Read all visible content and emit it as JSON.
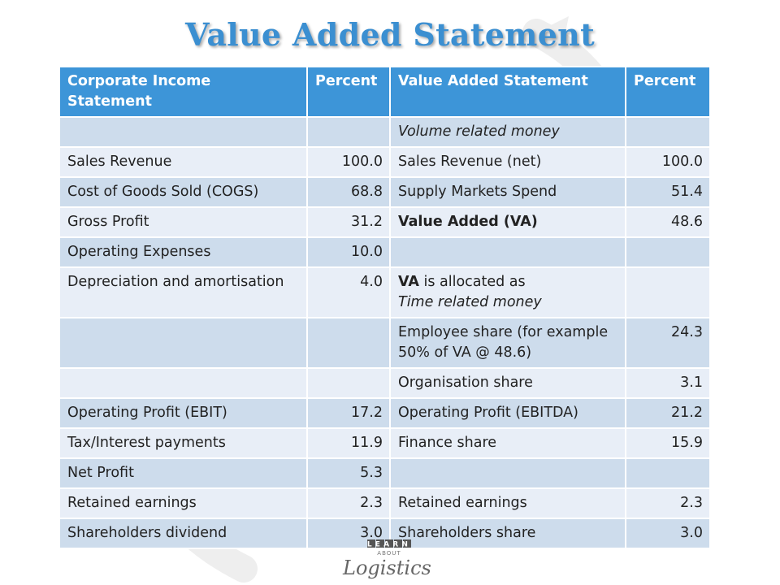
{
  "title": "Value Added Statement",
  "table": {
    "headers": [
      "Corporate Income Statement",
      "Percent",
      "Value Added Statement",
      "Percent"
    ],
    "rows": [
      {
        "c1": "",
        "c2": "",
        "c3": "Volume related money",
        "c4": ""
      },
      {
        "c1": "Sales Revenue",
        "c2": "100.0",
        "c3": "Sales Revenue (net)",
        "c4": "100.0"
      },
      {
        "c1": "Cost of Goods Sold (COGS)",
        "c2": "68.8",
        "c3": "Supply Markets Spend",
        "c4": "51.4"
      },
      {
        "c1": "Gross Profit",
        "c2": "31.2",
        "c3": "Value Added (VA)",
        "c4": "48.6"
      },
      {
        "c1": "Operating Expenses",
        "c2": "10.0",
        "c3": "",
        "c4": ""
      },
      {
        "c1": "Depreciation and amortisation",
        "c2": "4.0",
        "c3_bold": "VA",
        "c3_rest": " is allocated as",
        "c3_ital": "Time related money",
        "c4": ""
      },
      {
        "c1": "",
        "c2": "",
        "c3": "Employee share (for example 50% of VA @ 48.6)",
        "c4": "24.3"
      },
      {
        "c1": "",
        "c2": "",
        "c3": "Organisation share",
        "c4": "3.1"
      },
      {
        "c1": "Operating Profit (EBIT)",
        "c2": "17.2",
        "c3": "Operating Profit (EBITDA)",
        "c4": "21.2"
      },
      {
        "c1": "Tax/Interest payments",
        "c2": "11.9",
        "c3": "Finance share",
        "c4": "15.9"
      },
      {
        "c1": "Net Profit",
        "c2": "5.3",
        "c3": "",
        "c4": ""
      },
      {
        "c1": "Retained earnings",
        "c2": "2.3",
        "c3": "Retained earnings",
        "c4": "2.3"
      },
      {
        "c1": "Shareholders dividend",
        "c2": "3.0",
        "c3": "Shareholders share",
        "c4": "3.0"
      }
    ]
  },
  "logo": {
    "line1": "LEARN",
    "line2": "ABOUT",
    "line3": "Logistics"
  },
  "colors": {
    "title": "#3b8fd1",
    "header_bg": "#3d95d8",
    "row_dark": "#cddcec",
    "row_light": "#e8eef7"
  }
}
